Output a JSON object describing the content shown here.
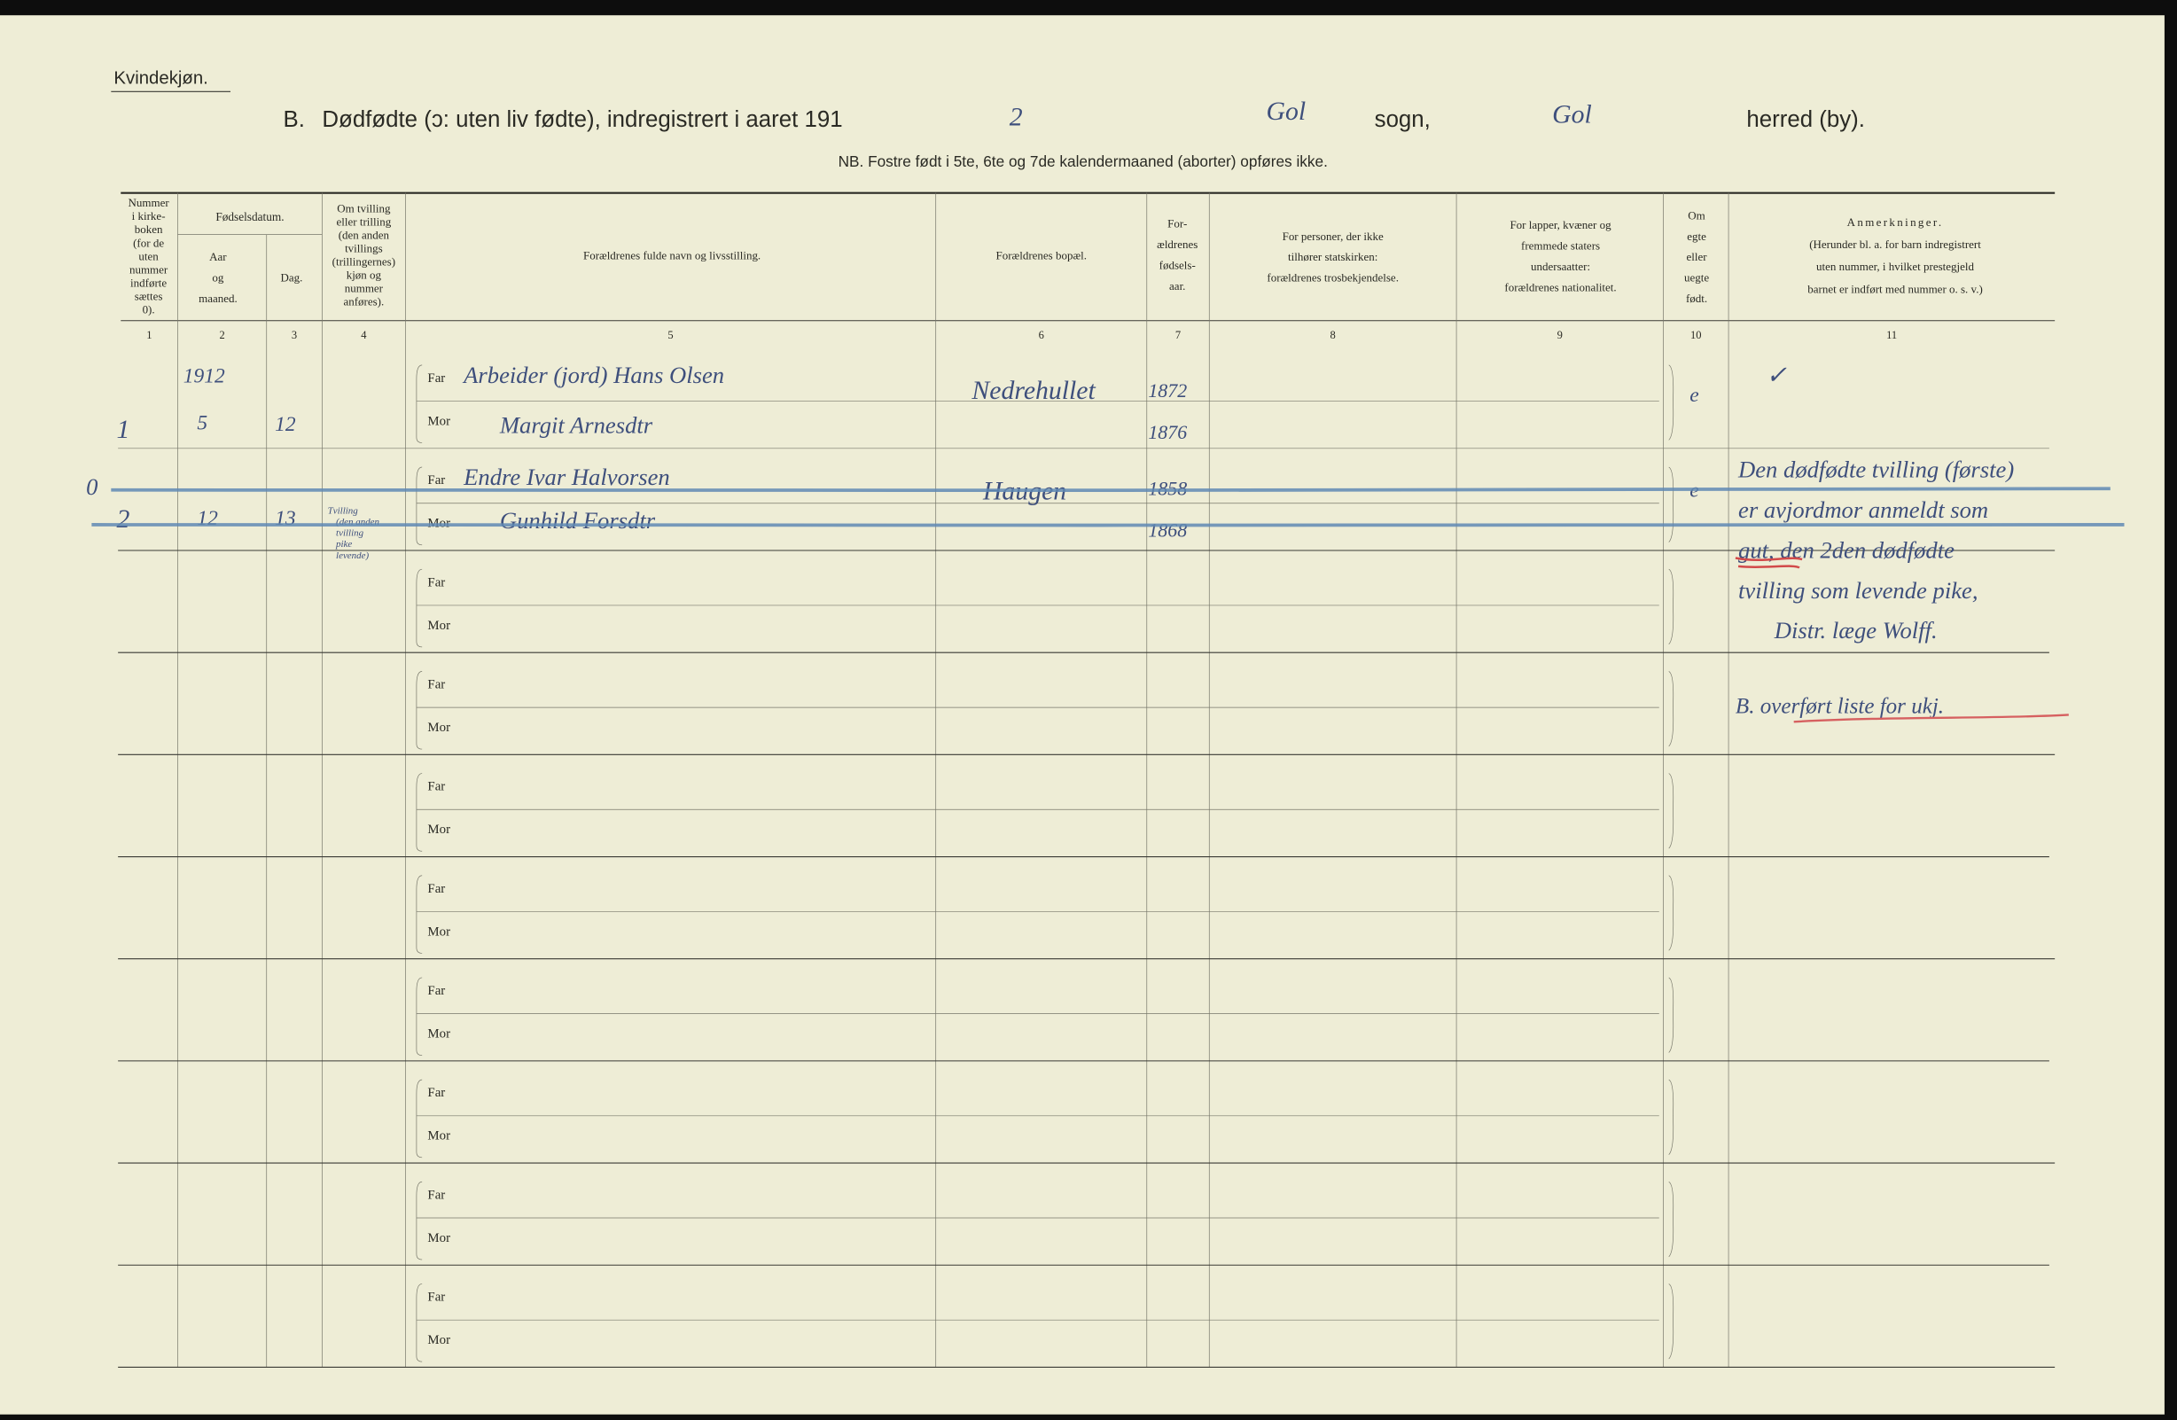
{
  "header": {
    "corner_label": "Kvindekjøn.",
    "title_prefix": "B.",
    "title": "Dødfødte (ɔ: uten liv fødte), indregistrert i aaret 191",
    "year_handwritten": "2",
    "parish_handwritten": "Gol",
    "parish_label": "sogn,",
    "district_handwritten": "Gol",
    "district_label": "herred (by).",
    "note": "NB. Fostre født i 5te, 6te og 7de kalendermaaned (aborter) opføres ikke."
  },
  "table": {
    "columns": [
      {
        "number": "1",
        "header": [
          "Nummer",
          "i kirke-",
          "boken",
          "(for de",
          "uten",
          "nummer",
          "indførte",
          "sættes",
          "0)."
        ]
      },
      {
        "number": "2",
        "group": "Fødselsdatum.",
        "header": [
          "Aar",
          "og",
          "maaned."
        ]
      },
      {
        "number": "3",
        "header": [
          "Dag."
        ]
      },
      {
        "number": "4",
        "header": [
          "Om tvilling",
          "eller trilling",
          "(den anden",
          "tvillings",
          "(trillingernes)",
          "kjøn og",
          "nummer",
          "anføres)."
        ]
      },
      {
        "number": "5",
        "header": [
          "Forældrenes fulde navn og livsstilling."
        ]
      },
      {
        "number": "6",
        "header": [
          "Forældrenes bopæl."
        ]
      },
      {
        "number": "7",
        "header": [
          "For-",
          "ældrenes",
          "fødsels-",
          "aar."
        ]
      },
      {
        "number": "8",
        "header": [
          "For personer, der ikke",
          "tilhører statskirken:",
          "forældrenes trosbekjendelse."
        ]
      },
      {
        "number": "9",
        "header": [
          "For lapper, kvæner og",
          "fremmede staters",
          "undersaatter:",
          "forældrenes nationalitet."
        ]
      },
      {
        "number": "10",
        "header": [
          "Om",
          "egte",
          "eller",
          "uegte",
          "født."
        ]
      },
      {
        "number": "11",
        "header": [
          "Anmerkninger.",
          "(Herunder bl. a. for barn indregistrert",
          "uten nummer, i hvilket prestegjeld",
          "barnet er indført med nummer o. s. v.)"
        ]
      }
    ],
    "labels": {
      "father": "Far",
      "mother": "Mor"
    },
    "rows": [
      {
        "number": "1",
        "year": "1912",
        "month": "5",
        "day": "12",
        "father": "Arbeider (jord) Hans Olsen",
        "mother": "Margit Arnesdtr",
        "residence": "Nedrehullet",
        "father_born": "1872",
        "mother_born": "1876",
        "legitimate": "e",
        "remarks": [
          "✓"
        ]
      },
      {
        "margin": "0",
        "number": "2",
        "month": "12",
        "day": "13",
        "twin": [
          "Tvilling",
          "(den anden",
          "tvilling",
          "pike",
          "levende)"
        ],
        "father": "Endre Ivar Halvorsen",
        "mother": "Gunhild Forsdtr",
        "residence": "Haugen",
        "father_born": "1858",
        "mother_born": "1868",
        "legitimate": "e",
        "remarks": [
          "Den dødfødte tvilling (første)",
          "er avjordmor anmeldt som",
          "gut, den 2den dødfødte",
          "tvilling som levende pike,",
          "Distr. læge Wolff."
        ],
        "note": "B. overført liste for ukj."
      }
    ]
  }
}
